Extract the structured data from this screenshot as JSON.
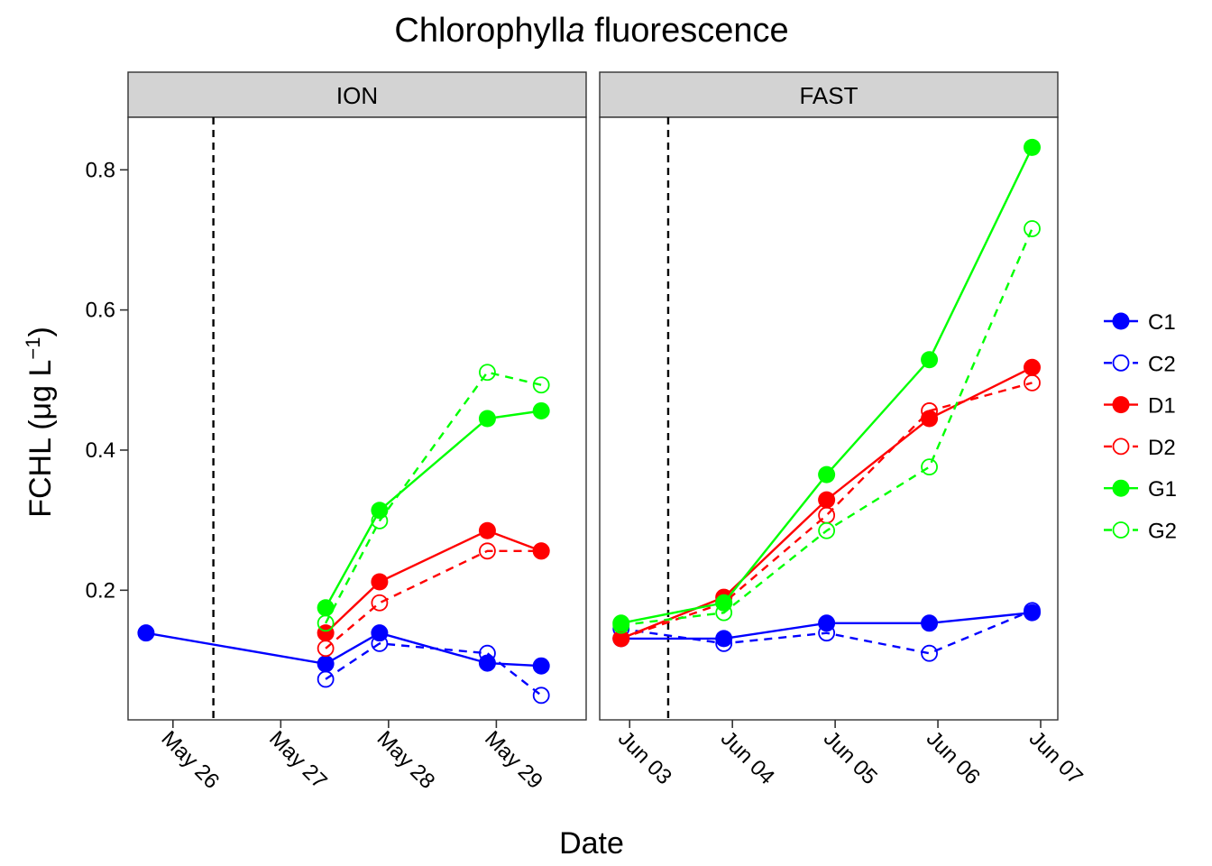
{
  "chart_data": {
    "type": "line",
    "title_prefix": "Chlorophyll",
    "title_italic": "a",
    "title_suffix": " fluorescence",
    "xlabel": "Date",
    "ylabel_main": "FCHL (",
    "ylabel_unit": "μg L",
    "ylabel_sup": "−1",
    "ylabel_end": ")",
    "ylim": [
      0.015,
      0.875
    ],
    "yticks": [
      0.2,
      0.4,
      0.6,
      0.8
    ],
    "ytick_labels": [
      "0.2",
      "0.4",
      "0.6",
      "0.8"
    ],
    "grid": false,
    "legend_position": "right",
    "legend": [
      {
        "name": "C1",
        "color": "#0000ff",
        "filled": true,
        "dashed": false
      },
      {
        "name": "C2",
        "color": "#0000ff",
        "filled": false,
        "dashed": true
      },
      {
        "name": "D1",
        "color": "#ff0000",
        "filled": true,
        "dashed": false
      },
      {
        "name": "D2",
        "color": "#ff0000",
        "filled": false,
        "dashed": true
      },
      {
        "name": "G1",
        "color": "#00ff00",
        "filled": true,
        "dashed": false
      },
      {
        "name": "G2",
        "color": "#00ff00",
        "filled": false,
        "dashed": true
      }
    ],
    "panels": [
      {
        "strip": "ION",
        "xlim": [
          "2016-05-25 14:00",
          "2016-05-29 20:00"
        ],
        "xticks": [
          "2016-05-26",
          "2016-05-27",
          "2016-05-28",
          "2016-05-29"
        ],
        "xtick_labels": [
          "May 26",
          "May 27",
          "May 28",
          "May 29"
        ],
        "vline": "2016-05-26 09:00",
        "series": [
          {
            "name": "C1",
            "x": [
              "2016-05-25 18:00",
              "2016-05-27 10:00",
              "2016-05-27 22:00",
              "2016-05-28 22:00",
              "2016-05-29 10:00"
            ],
            "y": [
              0.139,
              0.095,
              0.139,
              0.096,
              0.092
            ]
          },
          {
            "name": "C2",
            "x": [
              "2016-05-27 10:00",
              "2016-05-27 22:00",
              "2016-05-28 22:00",
              "2016-05-29 10:00"
            ],
            "y": [
              0.073,
              0.124,
              0.11,
              0.05
            ]
          },
          {
            "name": "D1",
            "x": [
              "2016-05-27 10:00",
              "2016-05-27 22:00",
              "2016-05-28 22:00",
              "2016-05-29 10:00"
            ],
            "y": [
              0.139,
              0.212,
              0.285,
              0.256
            ]
          },
          {
            "name": "D2",
            "x": [
              "2016-05-27 10:00",
              "2016-05-27 22:00",
              "2016-05-28 22:00",
              "2016-05-29 10:00"
            ],
            "y": [
              0.117,
              0.182,
              0.256,
              0.256
            ]
          },
          {
            "name": "G1",
            "x": [
              "2016-05-27 10:00",
              "2016-05-27 22:00",
              "2016-05-28 22:00",
              "2016-05-29 10:00"
            ],
            "y": [
              0.175,
              0.314,
              0.445,
              0.456
            ]
          },
          {
            "name": "G2",
            "x": [
              "2016-05-27 10:00",
              "2016-05-27 22:00",
              "2016-05-28 22:00",
              "2016-05-29 10:00"
            ],
            "y": [
              0.153,
              0.299,
              0.511,
              0.493
            ]
          }
        ]
      },
      {
        "strip": "FAST",
        "xlim": [
          "2016-06-02 17:00",
          "2016-06-07 04:00"
        ],
        "xticks": [
          "2016-06-03",
          "2016-06-04",
          "2016-06-05",
          "2016-06-06",
          "2016-06-07"
        ],
        "xtick_labels": [
          "Jun 03",
          "Jun 04",
          "Jun 05",
          "Jun 06",
          "Jun 07"
        ],
        "vline": "2016-06-03 09:00",
        "series": [
          {
            "name": "C1",
            "x": [
              "2016-06-02 22:00",
              "2016-06-03 22:00",
              "2016-06-04 22:00",
              "2016-06-05 22:00",
              "2016-06-06 22:00"
            ],
            "y": [
              0.131,
              0.131,
              0.153,
              0.153,
              0.168
            ]
          },
          {
            "name": "C2",
            "x": [
              "2016-06-02 22:00",
              "2016-06-03 22:00",
              "2016-06-04 22:00",
              "2016-06-05 22:00",
              "2016-06-06 22:00"
            ],
            "y": [
              0.145,
              0.124,
              0.139,
              0.11,
              0.171
            ]
          },
          {
            "name": "D1",
            "x": [
              "2016-06-02 22:00",
              "2016-06-03 22:00",
              "2016-06-04 22:00",
              "2016-06-05 22:00",
              "2016-06-06 22:00"
            ],
            "y": [
              0.131,
              0.19,
              0.329,
              0.445,
              0.518
            ]
          },
          {
            "name": "D2",
            "x": [
              "2016-06-02 22:00",
              "2016-06-03 22:00",
              "2016-06-04 22:00",
              "2016-06-05 22:00",
              "2016-06-06 22:00"
            ],
            "y": [
              0.131,
              0.182,
              0.307,
              0.456,
              0.496
            ]
          },
          {
            "name": "G1",
            "x": [
              "2016-06-02 22:00",
              "2016-06-03 22:00",
              "2016-06-04 22:00",
              "2016-06-05 22:00",
              "2016-06-06 22:00"
            ],
            "y": [
              0.153,
              0.182,
              0.365,
              0.529,
              0.832
            ]
          },
          {
            "name": "G2",
            "x": [
              "2016-06-02 22:00",
              "2016-06-03 22:00",
              "2016-06-04 22:00",
              "2016-06-05 22:00",
              "2016-06-06 22:00"
            ],
            "y": [
              0.15,
              0.168,
              0.285,
              0.376,
              0.716
            ]
          }
        ]
      }
    ]
  }
}
